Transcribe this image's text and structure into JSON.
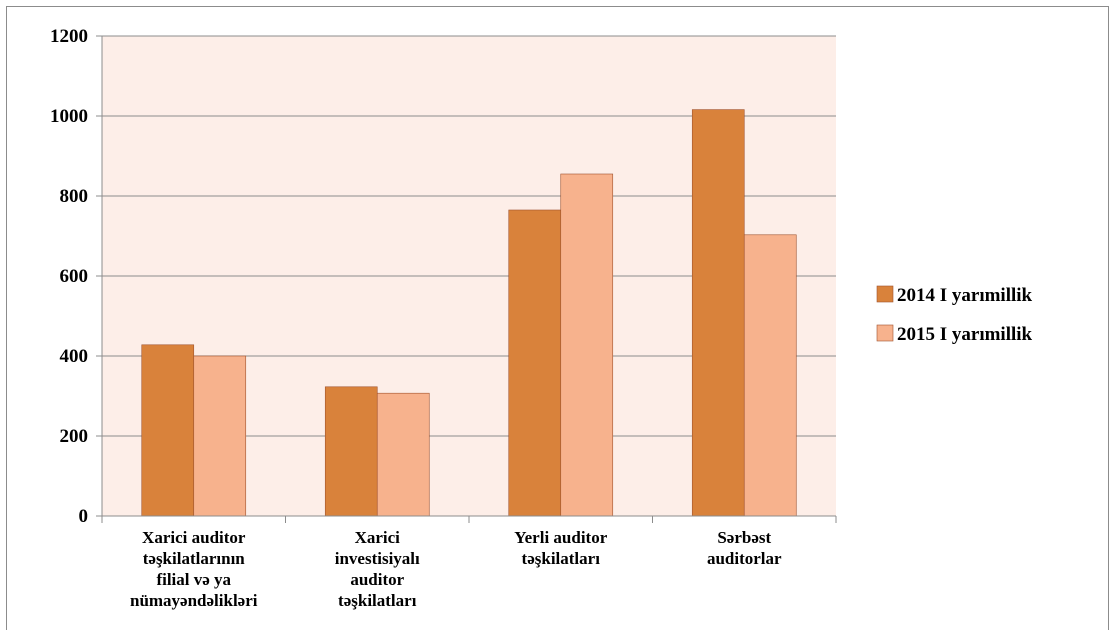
{
  "chart_data": {
    "type": "bar",
    "categories": [
      [
        "Xarici auditor",
        "təşkilatlarının",
        "filial və ya",
        "nümayəndəlikləri"
      ],
      [
        "Xarici",
        "investisiyalı",
        "auditor",
        "təşkilatları"
      ],
      [
        "Yerli auditor",
        "təşkilatları"
      ],
      [
        "Sərbəst",
        "auditorlar"
      ]
    ],
    "series": [
      {
        "name": "2014 I yarımillik",
        "color": "#d9823b",
        "values": [
          428,
          323,
          765,
          1016
        ]
      },
      {
        "name": "2015 I yarımillik",
        "color": "#f7b28d",
        "values": [
          400,
          307,
          855,
          703
        ]
      }
    ],
    "ylim": [
      0,
      1200
    ],
    "yticks": [
      0,
      200,
      400,
      600,
      800,
      1000,
      1200
    ],
    "grid": true,
    "plot_background": "#fdeee8",
    "legend_position": "right",
    "title": "",
    "xlabel": "",
    "ylabel": ""
  }
}
